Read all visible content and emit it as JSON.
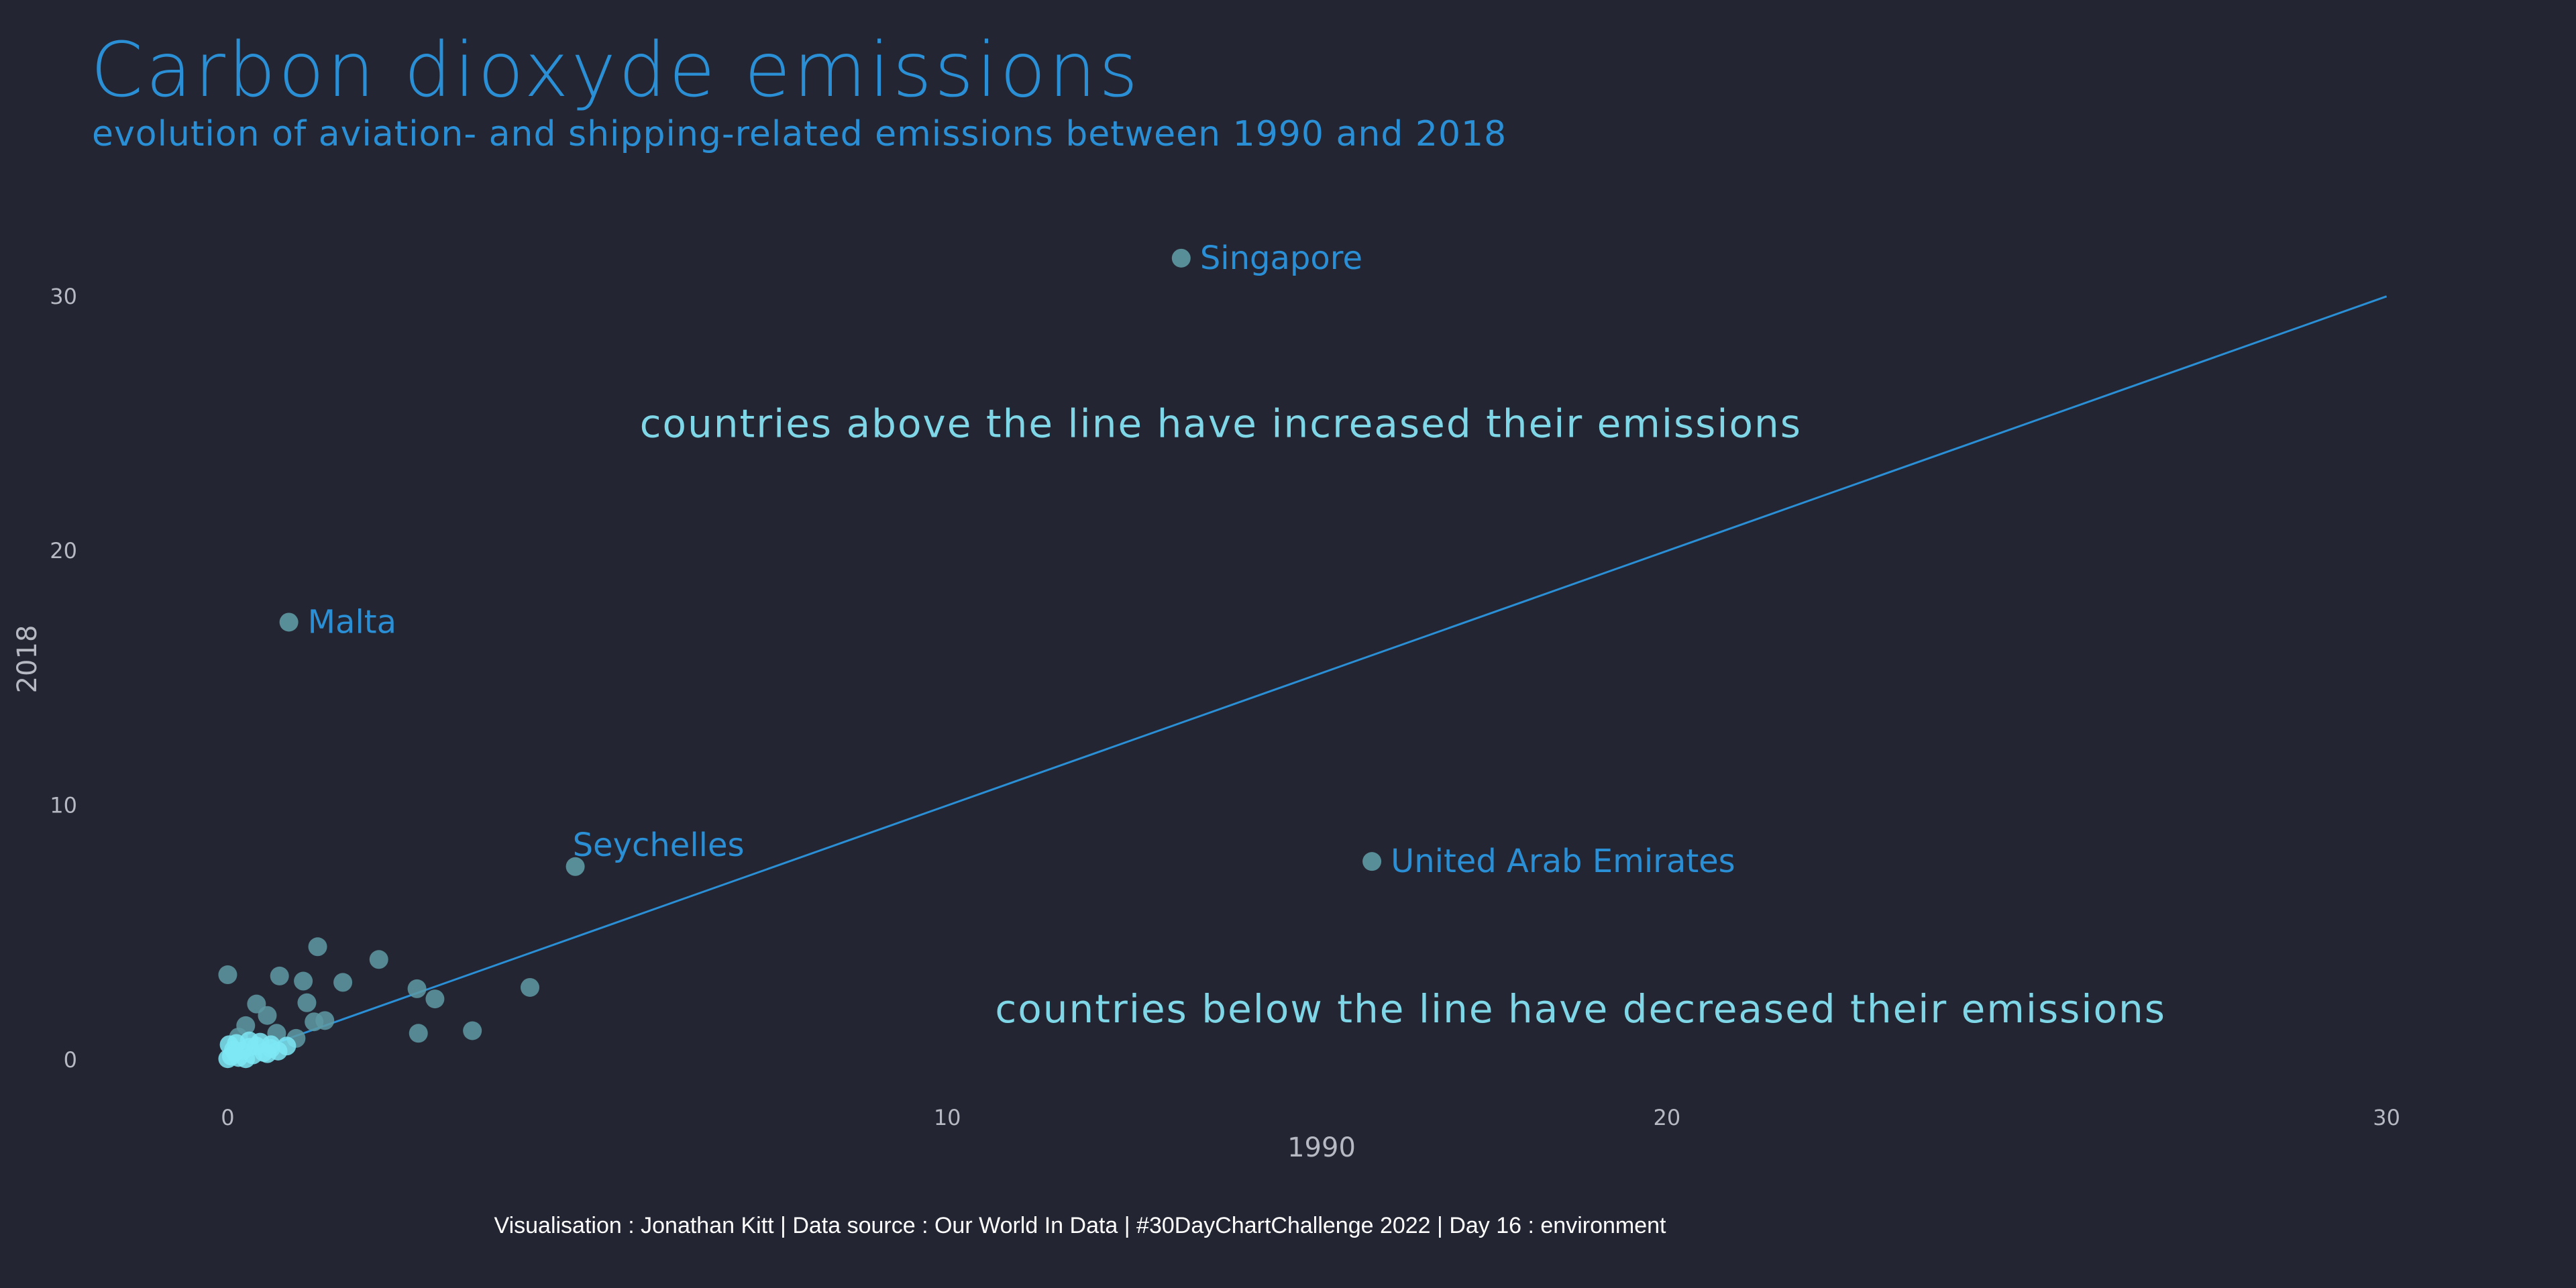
{
  "chart_data": {
    "type": "scatter",
    "title": "Carbon dioxyde emissions",
    "subtitle": "evolution of aviation- and shipping-related emissions between 1990 and 2018",
    "xlabel": "1990",
    "ylabel": "2018",
    "xlim": [
      -1.3,
      31.7
    ],
    "ylim": [
      -2.5,
      34
    ],
    "xticks": [
      0,
      10,
      20,
      30
    ],
    "yticks": [
      0,
      10,
      20,
      30
    ],
    "grid": false,
    "reference_line": {
      "from": [
        0,
        0
      ],
      "to": [
        30,
        30
      ],
      "color": "#2b8fd6"
    },
    "labeled_points": [
      {
        "name": "Singapore",
        "x": 13.25,
        "y": 31.5
      },
      {
        "name": "Malta",
        "x": 0.85,
        "y": 17.2
      },
      {
        "name": "Seychelles",
        "x": 4.83,
        "y": 7.6
      },
      {
        "name": "United Arab Emirates",
        "x": 15.9,
        "y": 7.8
      }
    ],
    "points": [
      [
        0.0,
        3.35
      ],
      [
        1.25,
        4.45
      ],
      [
        2.1,
        3.95
      ],
      [
        0.72,
        3.3
      ],
      [
        1.05,
        3.1
      ],
      [
        1.6,
        3.05
      ],
      [
        2.63,
        2.8
      ],
      [
        2.88,
        2.4
      ],
      [
        4.2,
        2.85
      ],
      [
        0.4,
        2.2
      ],
      [
        1.1,
        2.25
      ],
      [
        0.55,
        1.75
      ],
      [
        1.2,
        1.5
      ],
      [
        1.35,
        1.55
      ],
      [
        0.25,
        1.35
      ],
      [
        0.68,
        1.05
      ],
      [
        0.95,
        0.85
      ],
      [
        0.15,
        0.9
      ],
      [
        2.65,
        1.05
      ],
      [
        3.4,
        1.15
      ],
      [
        0.82,
        0.55
      ],
      [
        0.6,
        0.45
      ],
      [
        0.45,
        0.7
      ],
      [
        0.3,
        0.5
      ],
      [
        0.2,
        0.35
      ],
      [
        0.1,
        0.3
      ],
      [
        0.35,
        0.2
      ],
      [
        0.05,
        0.15
      ],
      [
        0.5,
        0.3
      ],
      [
        0.7,
        0.35
      ],
      [
        0.15,
        0.1
      ],
      [
        0.25,
        0.05
      ],
      [
        0.0,
        0.05
      ],
      [
        0.08,
        0.4
      ],
      [
        0.4,
        0.55
      ],
      [
        0.55,
        0.25
      ],
      [
        0.3,
        0.75
      ],
      [
        0.02,
        0.6
      ],
      [
        0.12,
        0.65
      ],
      [
        0.6,
        0.6
      ]
    ],
    "annotations": [
      {
        "text": "countries above the line have increased their emissions",
        "x": 13.8,
        "y": 25
      },
      {
        "text": "countries below the line have decreased their emissions",
        "x": 18.8,
        "y": 2
      }
    ],
    "caption": "Visualisation : Jonathan Kitt | Data source : Our World In Data | #30DayChartChallenge 2022 | Day 16 : environment"
  },
  "colors": {
    "background": "#232632",
    "accent": "#2b8fd6",
    "point": "#5e9aa3",
    "point_dense": "#7ee8f5",
    "annotation": "#7fd6e6",
    "tick": "#b6b9c2"
  }
}
